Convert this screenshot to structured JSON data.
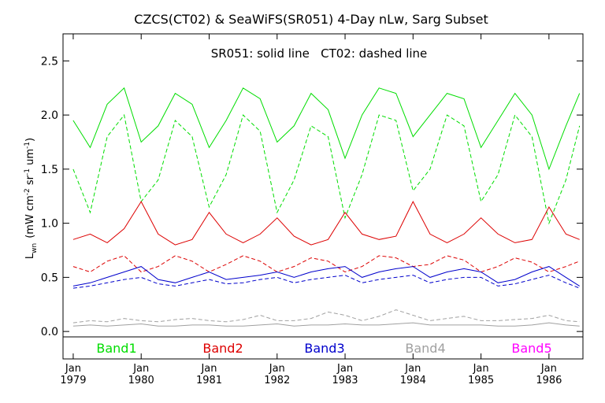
{
  "chart_data": {
    "type": "line",
    "title": "CZCS(CT02) & SeaWiFS(SR051) 4-Day nLw, Sarg Subset",
    "annotation": "SR051: solid line   CT02: dashed line",
    "ylabel": "L_wn (mW cm^-2 sr^-1 um^-1)",
    "ylabel_main": "L",
    "ylabel_sub": "wn",
    "ylabel_units": "(mW cm",
    "ylabel_exp1": "-2",
    "ylabel_sr": " sr",
    "ylabel_exp2": "-1",
    "ylabel_um": " um",
    "ylabel_exp3": "-1",
    "ylabel_close": ")",
    "ylim": [
      -0.05,
      2.75
    ],
    "xlim": [
      1978.85,
      1986.5
    ],
    "yticks": [
      {
        "value": 0.0,
        "label": "0.0"
      },
      {
        "value": 0.5,
        "label": "0.5"
      },
      {
        "value": 1.0,
        "label": "1.0"
      },
      {
        "value": 1.5,
        "label": "1.5"
      },
      {
        "value": 2.0,
        "label": "2.0"
      },
      {
        "value": 2.5,
        "label": "2.5"
      }
    ],
    "xticks": [
      {
        "value": 1979,
        "month": "Jan",
        "year": "1979"
      },
      {
        "value": 1980,
        "month": "Jan",
        "year": "1980"
      },
      {
        "value": 1981,
        "month": "Jan",
        "year": "1981"
      },
      {
        "value": 1982,
        "month": "Jan",
        "year": "1982"
      },
      {
        "value": 1983,
        "month": "Jan",
        "year": "1983"
      },
      {
        "value": 1984,
        "month": "Jan",
        "year": "1984"
      },
      {
        "value": 1985,
        "month": "Jan",
        "year": "1985"
      },
      {
        "value": 1986,
        "month": "Jan",
        "year": "1986"
      }
    ],
    "legend": [
      {
        "name": "Band1",
        "color": "#00dd00"
      },
      {
        "name": "Band2",
        "color": "#dd0000"
      },
      {
        "name": "Band3",
        "color": "#0000cc"
      },
      {
        "name": "Band4",
        "color": "#a0a0a0"
      },
      {
        "name": "Band5",
        "color": "#ff00ff"
      }
    ],
    "series": [
      {
        "name": "Band1",
        "line": "solid",
        "color": "#00dd00",
        "x": [
          1979.0,
          1979.25,
          1979.5,
          1979.75,
          1980.0,
          1980.25,
          1980.5,
          1980.75,
          1981.0,
          1981.25,
          1981.5,
          1981.75,
          1982.0,
          1982.25,
          1982.5,
          1982.75,
          1983.0,
          1983.25,
          1983.5,
          1983.75,
          1984.0,
          1984.25,
          1984.5,
          1984.75,
          1985.0,
          1985.25,
          1985.5,
          1985.75,
          1986.0,
          1986.25,
          1986.45
        ],
        "y": [
          1.95,
          1.7,
          2.1,
          2.25,
          1.75,
          1.9,
          2.2,
          2.1,
          1.7,
          1.95,
          2.25,
          2.15,
          1.75,
          1.9,
          2.2,
          2.05,
          1.6,
          2.0,
          2.25,
          2.2,
          1.8,
          2.0,
          2.2,
          2.15,
          1.7,
          1.95,
          2.2,
          2.0,
          1.5,
          1.9,
          2.2
        ]
      },
      {
        "name": "Band1",
        "line": "dashed",
        "color": "#00dd00",
        "x": [
          1979.0,
          1979.25,
          1979.5,
          1979.75,
          1980.0,
          1980.25,
          1980.5,
          1980.75,
          1981.0,
          1981.25,
          1981.5,
          1981.75,
          1982.0,
          1982.25,
          1982.5,
          1982.75,
          1983.0,
          1983.25,
          1983.5,
          1983.75,
          1984.0,
          1984.25,
          1984.5,
          1984.75,
          1985.0,
          1985.25,
          1985.5,
          1985.75,
          1986.0,
          1986.25,
          1986.45
        ],
        "y": [
          1.5,
          1.1,
          1.8,
          2.0,
          1.2,
          1.4,
          1.95,
          1.8,
          1.15,
          1.45,
          2.0,
          1.85,
          1.1,
          1.4,
          1.9,
          1.8,
          1.05,
          1.45,
          2.0,
          1.95,
          1.3,
          1.5,
          2.0,
          1.9,
          1.2,
          1.45,
          2.0,
          1.8,
          1.0,
          1.4,
          1.9
        ]
      },
      {
        "name": "Band2",
        "line": "solid",
        "color": "#dd0000",
        "x": [
          1979.0,
          1979.25,
          1979.5,
          1979.75,
          1980.0,
          1980.25,
          1980.5,
          1980.75,
          1981.0,
          1981.25,
          1981.5,
          1981.75,
          1982.0,
          1982.25,
          1982.5,
          1982.75,
          1983.0,
          1983.25,
          1983.5,
          1983.75,
          1984.0,
          1984.25,
          1984.5,
          1984.75,
          1985.0,
          1985.25,
          1985.5,
          1985.75,
          1986.0,
          1986.25,
          1986.45
        ],
        "y": [
          0.85,
          0.9,
          0.82,
          0.95,
          1.2,
          0.9,
          0.8,
          0.85,
          1.1,
          0.9,
          0.82,
          0.9,
          1.05,
          0.88,
          0.8,
          0.85,
          1.1,
          0.9,
          0.85,
          0.88,
          1.2,
          0.9,
          0.82,
          0.9,
          1.05,
          0.9,
          0.82,
          0.85,
          1.15,
          0.9,
          0.85
        ]
      },
      {
        "name": "Band2",
        "line": "dashed",
        "color": "#dd0000",
        "x": [
          1979.0,
          1979.25,
          1979.5,
          1979.75,
          1980.0,
          1980.25,
          1980.5,
          1980.75,
          1981.0,
          1981.25,
          1981.5,
          1981.75,
          1982.0,
          1982.25,
          1982.5,
          1982.75,
          1983.0,
          1983.25,
          1983.5,
          1983.75,
          1984.0,
          1984.25,
          1984.5,
          1984.75,
          1985.0,
          1985.25,
          1985.5,
          1985.75,
          1986.0,
          1986.25,
          1986.45
        ],
        "y": [
          0.6,
          0.55,
          0.65,
          0.7,
          0.55,
          0.6,
          0.7,
          0.65,
          0.55,
          0.62,
          0.7,
          0.65,
          0.55,
          0.6,
          0.68,
          0.65,
          0.55,
          0.6,
          0.7,
          0.68,
          0.6,
          0.62,
          0.7,
          0.66,
          0.55,
          0.6,
          0.68,
          0.64,
          0.55,
          0.6,
          0.65
        ]
      },
      {
        "name": "Band3",
        "line": "solid",
        "color": "#0000cc",
        "x": [
          1979.0,
          1979.25,
          1979.5,
          1979.75,
          1980.0,
          1980.25,
          1980.5,
          1980.75,
          1981.0,
          1981.25,
          1981.5,
          1981.75,
          1982.0,
          1982.25,
          1982.5,
          1982.75,
          1983.0,
          1983.25,
          1983.5,
          1983.75,
          1984.0,
          1984.25,
          1984.5,
          1984.75,
          1985.0,
          1985.25,
          1985.5,
          1985.75,
          1986.0,
          1986.25,
          1986.45
        ],
        "y": [
          0.42,
          0.45,
          0.5,
          0.55,
          0.6,
          0.48,
          0.45,
          0.5,
          0.55,
          0.48,
          0.5,
          0.52,
          0.55,
          0.5,
          0.55,
          0.58,
          0.6,
          0.5,
          0.55,
          0.58,
          0.6,
          0.5,
          0.55,
          0.58,
          0.55,
          0.45,
          0.48,
          0.55,
          0.6,
          0.5,
          0.42
        ]
      },
      {
        "name": "Band3",
        "line": "dashed",
        "color": "#0000cc",
        "x": [
          1979.0,
          1979.25,
          1979.5,
          1979.75,
          1980.0,
          1980.25,
          1980.5,
          1980.75,
          1981.0,
          1981.25,
          1981.5,
          1981.75,
          1982.0,
          1982.25,
          1982.5,
          1982.75,
          1983.0,
          1983.25,
          1983.5,
          1983.75,
          1984.0,
          1984.25,
          1984.5,
          1984.75,
          1985.0,
          1985.25,
          1985.5,
          1985.75,
          1986.0,
          1986.25,
          1986.45
        ],
        "y": [
          0.4,
          0.42,
          0.45,
          0.48,
          0.5,
          0.44,
          0.42,
          0.45,
          0.48,
          0.44,
          0.45,
          0.48,
          0.5,
          0.45,
          0.48,
          0.5,
          0.52,
          0.45,
          0.48,
          0.5,
          0.52,
          0.45,
          0.48,
          0.5,
          0.5,
          0.42,
          0.44,
          0.48,
          0.52,
          0.45,
          0.4
        ]
      },
      {
        "name": "Band4",
        "line": "solid",
        "color": "#a0a0a0",
        "x": [
          1979.0,
          1979.25,
          1979.5,
          1979.75,
          1980.0,
          1980.25,
          1980.5,
          1980.75,
          1981.0,
          1981.25,
          1981.5,
          1981.75,
          1982.0,
          1982.25,
          1982.5,
          1982.75,
          1983.0,
          1983.25,
          1983.5,
          1983.75,
          1984.0,
          1984.25,
          1984.5,
          1984.75,
          1985.0,
          1985.25,
          1985.5,
          1985.75,
          1986.0,
          1986.25,
          1986.45
        ],
        "y": [
          0.05,
          0.06,
          0.05,
          0.06,
          0.07,
          0.05,
          0.05,
          0.06,
          0.06,
          0.05,
          0.05,
          0.06,
          0.07,
          0.05,
          0.06,
          0.06,
          0.07,
          0.06,
          0.06,
          0.07,
          0.08,
          0.06,
          0.06,
          0.06,
          0.06,
          0.05,
          0.05,
          0.06,
          0.08,
          0.06,
          0.05
        ]
      },
      {
        "name": "Band4",
        "line": "dashed",
        "color": "#a0a0a0",
        "x": [
          1979.0,
          1979.25,
          1979.5,
          1979.75,
          1980.0,
          1980.25,
          1980.5,
          1980.75,
          1981.0,
          1981.25,
          1981.5,
          1981.75,
          1982.0,
          1982.25,
          1982.5,
          1982.75,
          1983.0,
          1983.25,
          1983.5,
          1983.75,
          1984.0,
          1984.25,
          1984.5,
          1984.75,
          1985.0,
          1985.25,
          1985.5,
          1985.75,
          1986.0,
          1986.25,
          1986.45
        ],
        "y": [
          0.08,
          0.1,
          0.09,
          0.12,
          0.1,
          0.09,
          0.11,
          0.12,
          0.1,
          0.09,
          0.11,
          0.15,
          0.1,
          0.1,
          0.12,
          0.18,
          0.15,
          0.1,
          0.14,
          0.2,
          0.15,
          0.1,
          0.12,
          0.14,
          0.1,
          0.1,
          0.11,
          0.12,
          0.15,
          0.1,
          0.09
        ]
      }
    ]
  }
}
